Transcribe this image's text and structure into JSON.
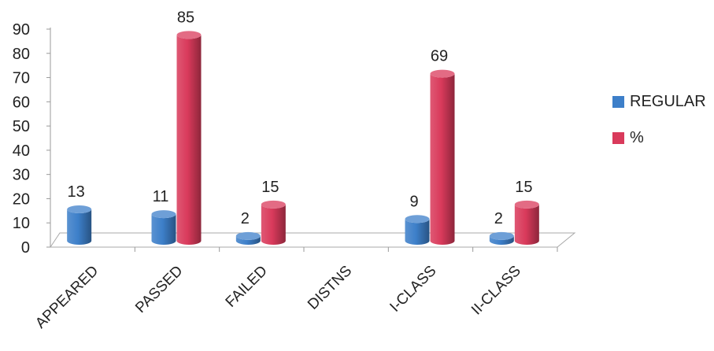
{
  "chart_data": {
    "type": "bar",
    "categories": [
      "APPEARED",
      "PASSED",
      "FAILED",
      "DISTNS",
      "I-CLASS",
      "II-CLASS"
    ],
    "series": [
      {
        "name": "REGULAR",
        "values": [
          13,
          11,
          2,
          null,
          9,
          2
        ],
        "color": "#3d7fc9"
      },
      {
        "name": "%",
        "values": [
          null,
          85,
          15,
          null,
          69,
          15
        ],
        "color": "#d93a5b"
      }
    ],
    "data_labels": [
      {
        "series": 0,
        "category": 0,
        "text": "13"
      },
      {
        "series": 0,
        "category": 1,
        "text": "11"
      },
      {
        "series": 1,
        "category": 1,
        "text": "85"
      },
      {
        "series": 0,
        "category": 2,
        "text": "2"
      },
      {
        "series": 1,
        "category": 2,
        "text": "15"
      },
      {
        "series": 0,
        "category": 4,
        "text": "9"
      },
      {
        "series": 1,
        "category": 4,
        "text": "69"
      },
      {
        "series": 0,
        "category": 5,
        "text": "2"
      },
      {
        "series": 1,
        "category": 5,
        "text": "15"
      }
    ],
    "yticks": [
      "0",
      "10",
      "20",
      "30",
      "40",
      "50",
      "60",
      "70",
      "80",
      "90"
    ],
    "ylim": [
      0,
      90
    ],
    "grid": false,
    "legend": "right",
    "style": "3d-cylinder"
  }
}
